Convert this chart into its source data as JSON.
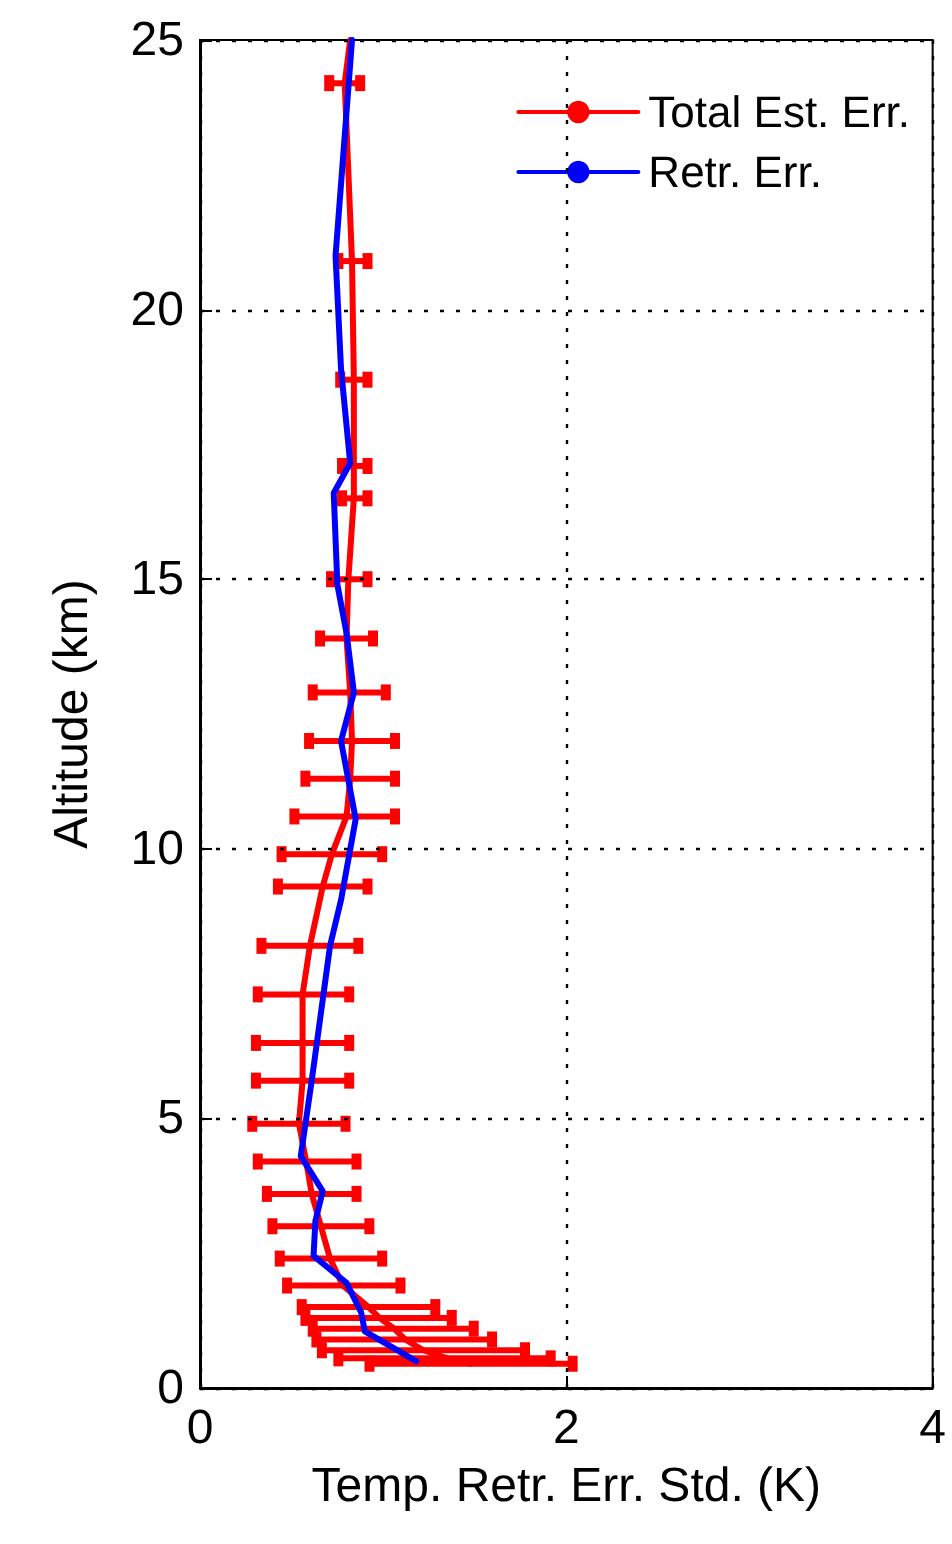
{
  "chart_data": {
    "type": "line",
    "xlabel": "Temp. Retr. Err. Std. (K)",
    "ylabel": "Altitude (km)",
    "xlim": [
      0,
      4
    ],
    "xticks": [
      0,
      2,
      4
    ],
    "ylim": [
      0,
      25
    ],
    "yticks": [
      0,
      5,
      10,
      15,
      20,
      25
    ],
    "grid": true,
    "legend": "top right",
    "marker": "none",
    "line_style": "solid",
    "series": [
      {
        "name": "Total Est. Err.",
        "color": "#ff0000",
        "x": [
          0.82,
          0.79,
          0.83,
          0.84,
          0.84,
          0.84,
          0.81,
          0.8,
          0.82,
          0.83,
          0.82,
          0.8,
          0.72,
          0.67,
          0.6,
          0.56,
          0.56,
          0.56,
          0.54,
          0.58,
          0.61,
          0.66,
          0.71,
          0.78,
          0.92,
          0.98,
          1.06,
          1.12,
          1.22,
          1.35,
          1.48
        ],
        "values": [
          25,
          24.2,
          20.9,
          18.7,
          17.1,
          16.5,
          15.0,
          13.9,
          12.9,
          12.0,
          11.3,
          10.6,
          9.9,
          9.3,
          8.2,
          7.3,
          6.4,
          5.7,
          4.9,
          4.2,
          3.6,
          3.0,
          2.4,
          1.9,
          1.5,
          1.3,
          1.1,
          0.9,
          0.7,
          0.55,
          0.45
        ],
        "xerrors": [
          null,
          [
            0.7,
            0.88
          ],
          [
            0.75,
            0.92
          ],
          [
            0.76,
            0.92
          ],
          [
            0.77,
            0.92
          ],
          [
            0.77,
            0.92
          ],
          [
            0.71,
            0.92
          ],
          [
            0.65,
            0.95
          ],
          [
            0.61,
            1.02
          ],
          [
            0.59,
            1.07
          ],
          [
            0.57,
            1.07
          ],
          [
            0.51,
            1.07
          ],
          [
            0.44,
            1.0
          ],
          [
            0.42,
            0.92
          ],
          [
            0.33,
            0.87
          ],
          [
            0.31,
            0.82
          ],
          [
            0.3,
            0.82
          ],
          [
            0.3,
            0.82
          ],
          [
            0.28,
            0.8
          ],
          [
            0.31,
            0.86
          ],
          [
            0.36,
            0.86
          ],
          [
            0.39,
            0.93
          ],
          [
            0.43,
            1.0
          ],
          [
            0.47,
            1.1
          ],
          [
            0.55,
            1.29
          ],
          [
            0.57,
            1.38
          ],
          [
            0.61,
            1.5
          ],
          [
            0.63,
            1.6
          ],
          [
            0.66,
            1.78
          ],
          [
            0.75,
            1.92
          ],
          [
            0.92,
            2.04
          ]
        ]
      },
      {
        "name": "Retr. Err.",
        "color": "#0000ff",
        "x": [
          0.83,
          0.74,
          0.77,
          0.82,
          0.73,
          0.75,
          0.8,
          0.84,
          0.77,
          0.85,
          0.77,
          0.71,
          0.67,
          0.61,
          0.55,
          0.67,
          0.63,
          0.62,
          0.8,
          0.88,
          0.9,
          1.18
        ],
        "values": [
          25,
          21.0,
          18.9,
          17.15,
          16.6,
          14.9,
          14.0,
          12.9,
          12.0,
          10.55,
          9.05,
          8.2,
          7.2,
          5.7,
          4.3,
          3.65,
          3.1,
          2.45,
          1.95,
          1.4,
          1.05,
          0.5
        ]
      }
    ]
  }
}
